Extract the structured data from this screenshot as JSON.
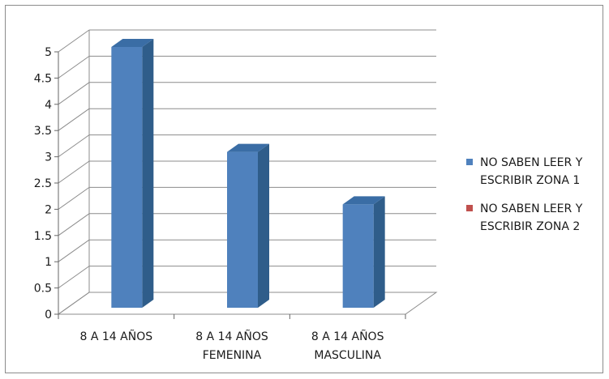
{
  "chart_data": {
    "type": "bar",
    "style": "3d-column",
    "categories": [
      [
        "8 A 14 AÑOS"
      ],
      [
        "8 A 14 AÑOS",
        "FEMENINA"
      ],
      [
        "8 A 14 AÑOS",
        "MASCULINA"
      ]
    ],
    "series": [
      {
        "name": [
          "NO SABEN LEER Y",
          "ESCRIBIR ZONA 1"
        ],
        "values": [
          5,
          3,
          2
        ],
        "color": "#4f81bd"
      },
      {
        "name": [
          "NO SABEN LEER Y",
          "ESCRIBIR ZONA 2"
        ],
        "values": [
          0,
          0,
          0
        ],
        "color": "#c0504d"
      }
    ],
    "ylim": [
      0,
      5
    ],
    "yticks": [
      "0",
      "0.5",
      "1",
      "1.5",
      "2",
      "2.5",
      "3",
      "3.5",
      "4",
      "4.5",
      "5"
    ],
    "grid": true,
    "legend_position": "right"
  }
}
